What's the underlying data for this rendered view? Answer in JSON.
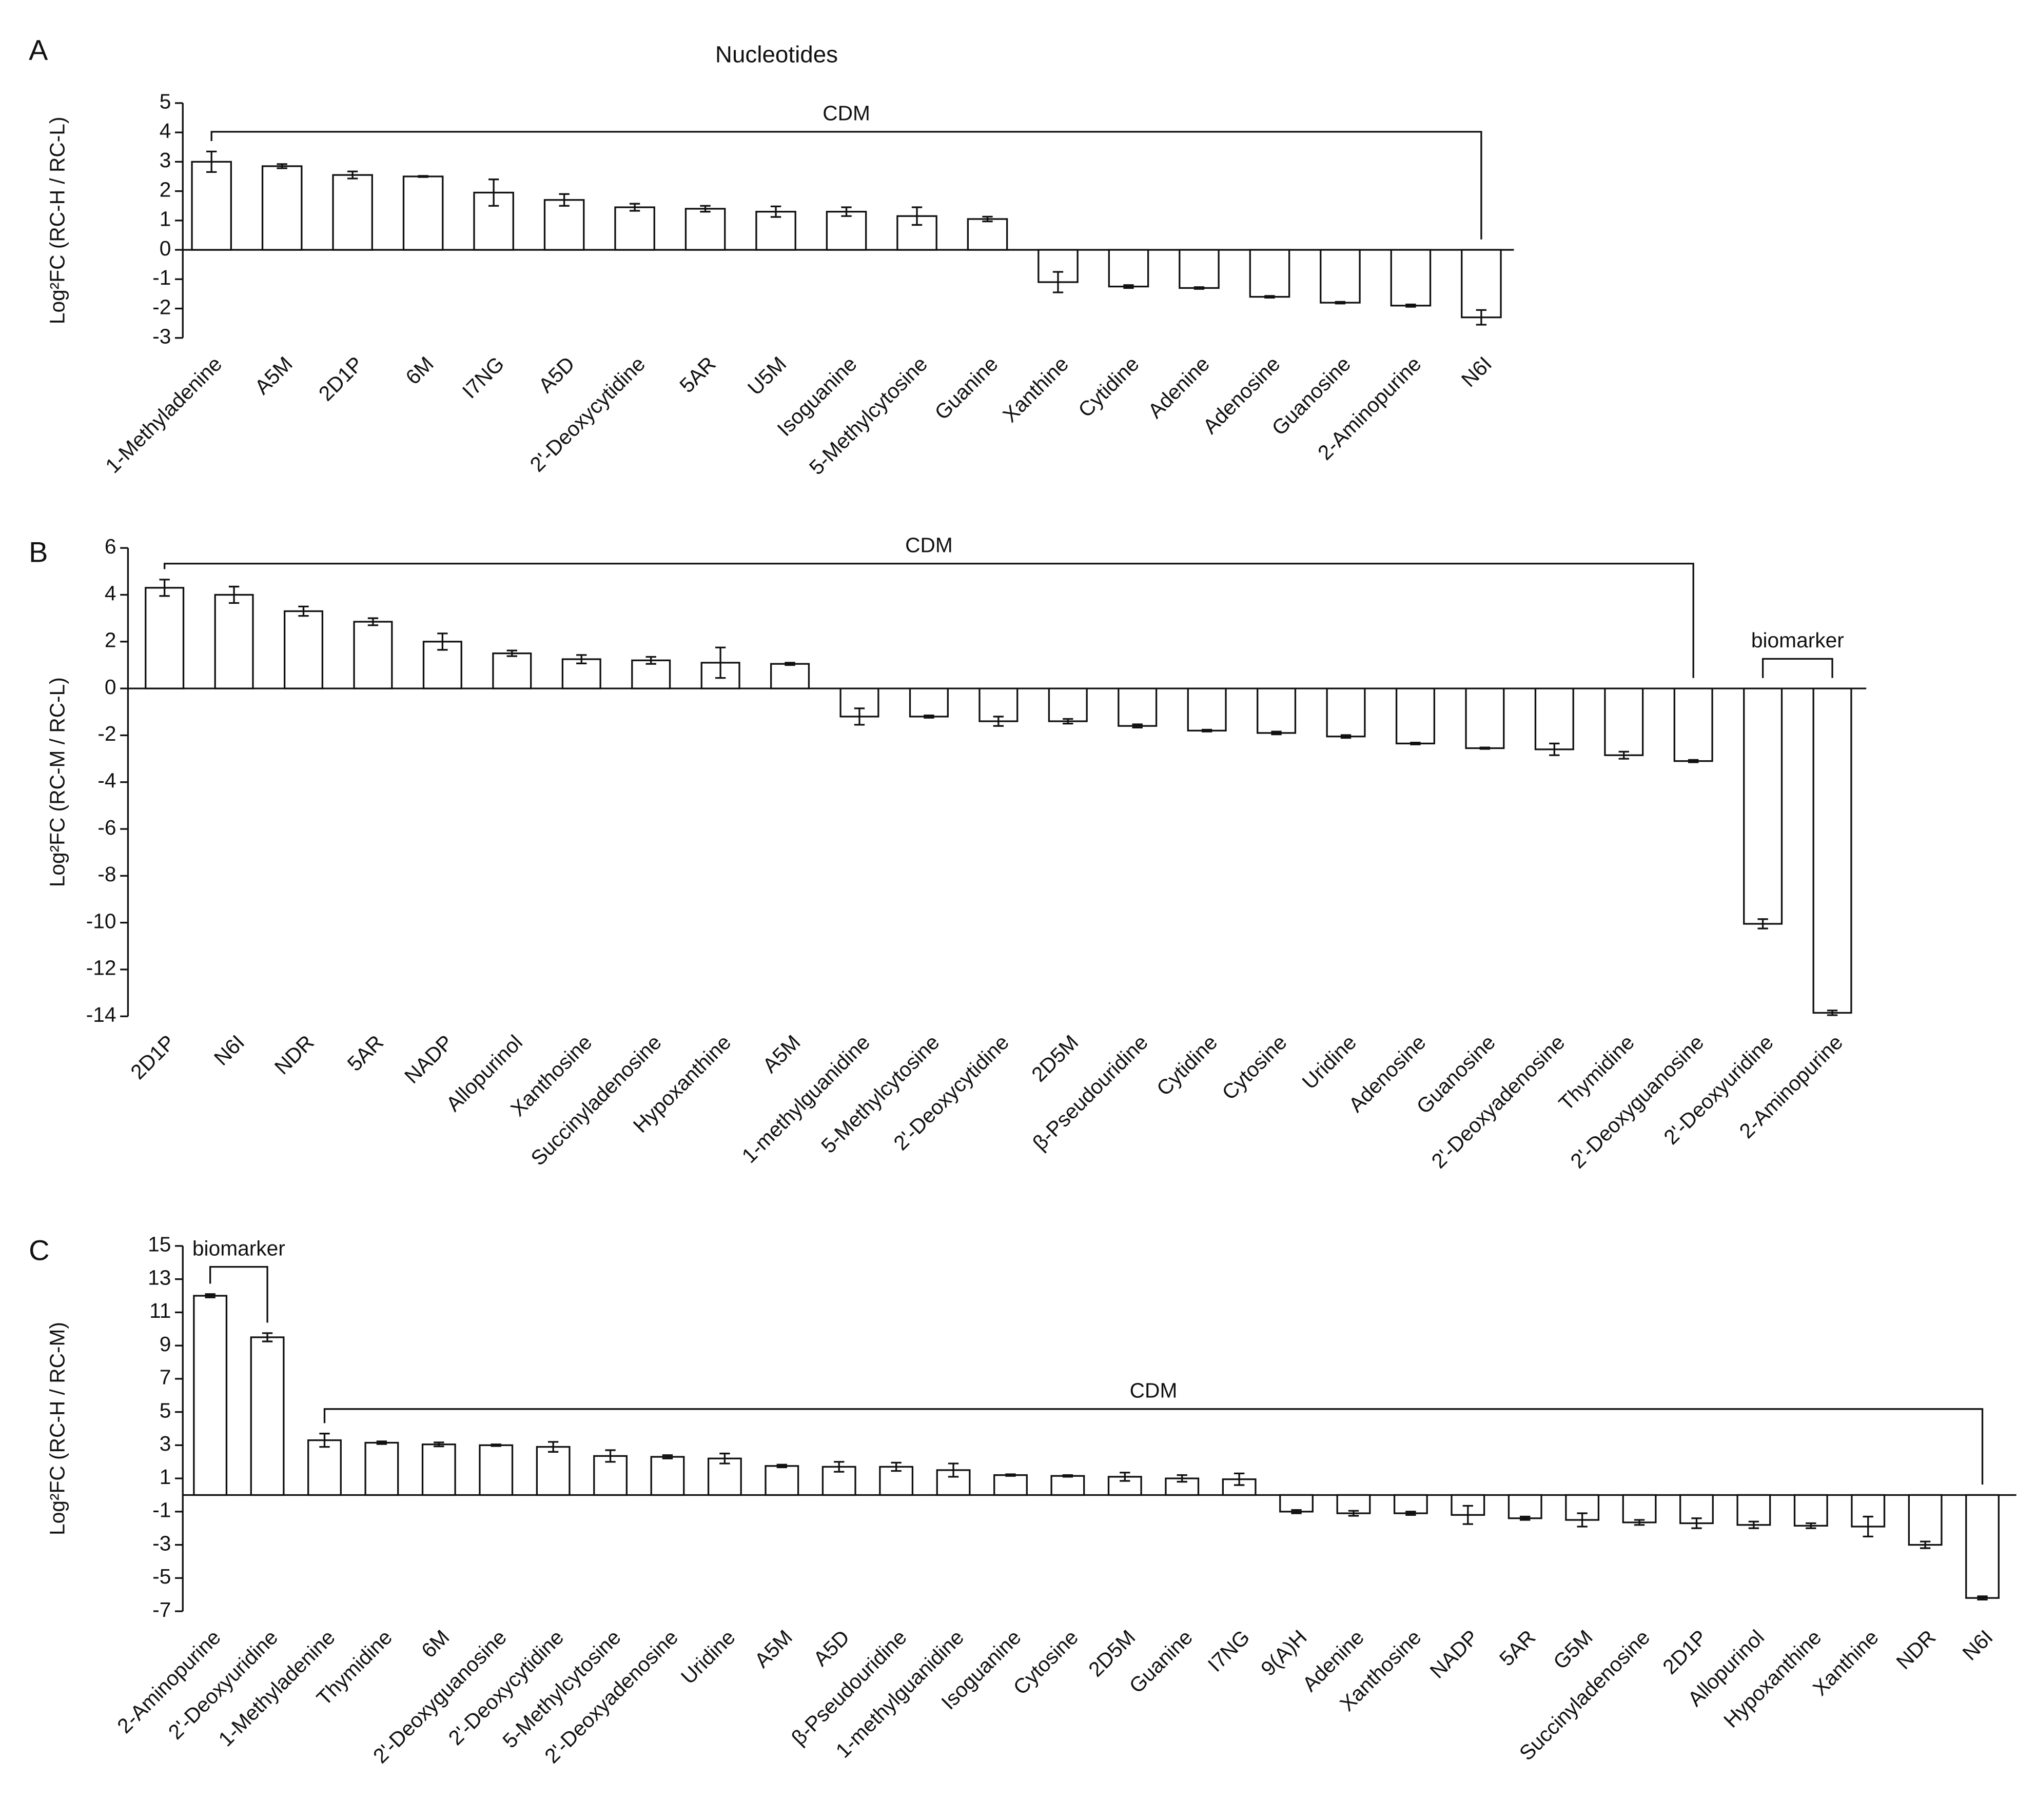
{
  "chart_data": [
    {
      "type": "bar",
      "panel": "A",
      "title": "Nucleotides",
      "ylabel": "Log²FC (RC-H / RC-L)",
      "annotations": [
        "CDM"
      ],
      "categories": [
        "1-Methyladenine",
        "A5M",
        "2D1P",
        "6M",
        "I7NG",
        "A5D",
        "2'-Deoxycytidine",
        "5AR",
        "U5M",
        "Isoguanine",
        "5-Methylcytosine",
        "Guanine",
        "Xanthine",
        "Cytidine",
        "Adenine",
        "Adenosine",
        "Guanosine",
        "2-Aminopurine",
        "N6I"
      ],
      "values": [
        3.0,
        2.85,
        2.55,
        2.5,
        1.95,
        1.7,
        1.45,
        1.4,
        1.3,
        1.3,
        1.15,
        1.05,
        -1.1,
        -1.25,
        -1.3,
        -1.6,
        -1.8,
        -1.9,
        -2.3
      ],
      "errors": [
        0.35,
        0.07,
        0.12,
        0.02,
        0.45,
        0.2,
        0.12,
        0.1,
        0.18,
        0.15,
        0.3,
        0.08,
        0.35,
        0.05,
        0.03,
        0.03,
        0.03,
        0.04,
        0.25
      ],
      "color": "#ffffff",
      "ylim": [
        -3,
        5
      ],
      "yticks": [
        -3,
        -2,
        -1,
        0,
        1,
        2,
        3,
        4,
        5
      ],
      "grid": false
    },
    {
      "type": "bar",
      "panel": "B",
      "ylabel": "Log²FC (RC-M / RC-L)",
      "annotations": [
        "CDM",
        "biomarker"
      ],
      "categories": [
        "2D1P",
        "N6I",
        "NDR",
        "5AR",
        "NADP",
        "Allopurinol",
        "Xanthosine",
        "Succinyladenosine",
        "Hypoxanthine",
        "A5M",
        "1-methylguanidine",
        "5-Methylcytosine",
        "2'-Deoxycytidine",
        "2D5M",
        "β-Pseudouridine",
        "Cytidine",
        "Cytosine",
        "Uridine",
        "Adenosine",
        "Guanosine",
        "2'-Deoxyadenosine",
        "Thymidine",
        "2'-Deoxyguanosine",
        "2'-Deoxyuridine",
        "2-Aminopurine"
      ],
      "values": [
        4.3,
        4.0,
        3.3,
        2.85,
        2.0,
        1.5,
        1.25,
        1.2,
        1.1,
        1.05,
        -1.2,
        -1.2,
        -1.4,
        -1.4,
        -1.6,
        -1.8,
        -1.9,
        -2.05,
        -2.35,
        -2.55,
        -2.6,
        -2.85,
        -3.1,
        -10.05,
        -13.85
      ],
      "errors": [
        0.35,
        0.35,
        0.2,
        0.15,
        0.35,
        0.12,
        0.18,
        0.15,
        0.65,
        0.05,
        0.35,
        0.05,
        0.2,
        0.1,
        0.07,
        0.04,
        0.06,
        0.06,
        0.04,
        0.03,
        0.25,
        0.15,
        0.05,
        0.2,
        0.1
      ],
      "color": "#ffffff",
      "ylim": [
        -14,
        6
      ],
      "yticks": [
        -14,
        -12,
        -10,
        -8,
        -6,
        -4,
        -2,
        0,
        2,
        4,
        6
      ],
      "grid": false
    },
    {
      "type": "bar",
      "panel": "C",
      "ylabel": "Log²FC (RC-H / RC-M)",
      "annotations": [
        "biomarker",
        "CDM"
      ],
      "categories": [
        "2-Aminopurine",
        "2'-Deoxyuridine",
        "1-Methyladenine",
        "Thymidine",
        "6M",
        "2'-Deoxyguanosine",
        "2'-Deoxycytidine",
        "5-Methylcytosine",
        "2'-Deoxyadenosine",
        "Uridine",
        "A5M",
        "A5D",
        "β-Pseudouridine",
        "1-methylguanidine",
        "Isoguanine",
        "Cytosine",
        "2D5M",
        "Guanine",
        "I7NG",
        "9(A)H",
        "Adenine",
        "Xanthosine",
        "NADP",
        "5AR",
        "G5M",
        "Succinyladenosine",
        "2D1P",
        "Allopurinol",
        "Hypoxanthine",
        "Xanthine",
        "NDR",
        "N6I"
      ],
      "values": [
        12.0,
        9.5,
        3.3,
        3.15,
        3.05,
        3.0,
        2.9,
        2.35,
        2.3,
        2.2,
        1.75,
        1.7,
        1.7,
        1.5,
        1.2,
        1.15,
        1.1,
        1.0,
        0.95,
        -1.0,
        -1.1,
        -1.1,
        -1.2,
        -1.4,
        -1.5,
        -1.65,
        -1.7,
        -1.8,
        -1.85,
        -1.9,
        -3.0,
        -6.2
      ],
      "errors": [
        0.1,
        0.25,
        0.4,
        0.08,
        0.12,
        0.05,
        0.3,
        0.35,
        0.1,
        0.3,
        0.08,
        0.3,
        0.25,
        0.4,
        0.05,
        0.05,
        0.25,
        0.2,
        0.35,
        0.1,
        0.15,
        0.1,
        0.55,
        0.1,
        0.4,
        0.15,
        0.3,
        0.2,
        0.15,
        0.6,
        0.2,
        0.1
      ],
      "color": "#ffffff",
      "ylim": [
        -7,
        15
      ],
      "yticks": [
        -7,
        -5,
        -3,
        -1,
        1,
        3,
        5,
        7,
        9,
        11,
        13,
        15
      ],
      "grid": false
    }
  ]
}
